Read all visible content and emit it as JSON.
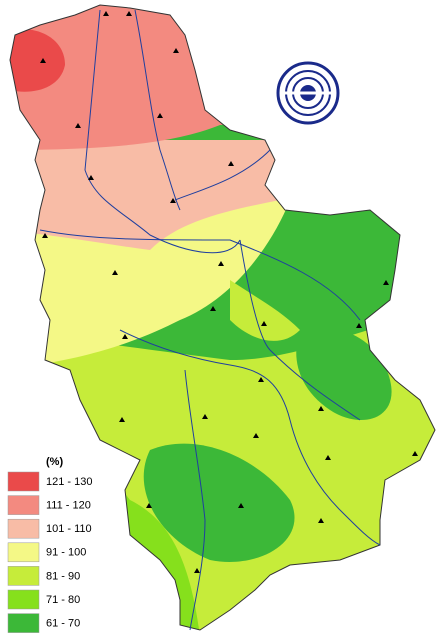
{
  "legend": {
    "title": "(%)",
    "items": [
      {
        "label": "121 - 130",
        "color": "#ea4a4a"
      },
      {
        "label": "111 - 120",
        "color": "#f38a80"
      },
      {
        "label": "101 - 110",
        "color": "#f8bca6"
      },
      {
        "label": "91 - 100",
        "color": "#f4f886"
      },
      {
        "label": "81 - 90",
        "color": "#c6ec3a"
      },
      {
        "label": "71 - 80",
        "color": "#86e01c"
      },
      {
        "label": "61 - 70",
        "color": "#3cb838"
      }
    ]
  }
}
